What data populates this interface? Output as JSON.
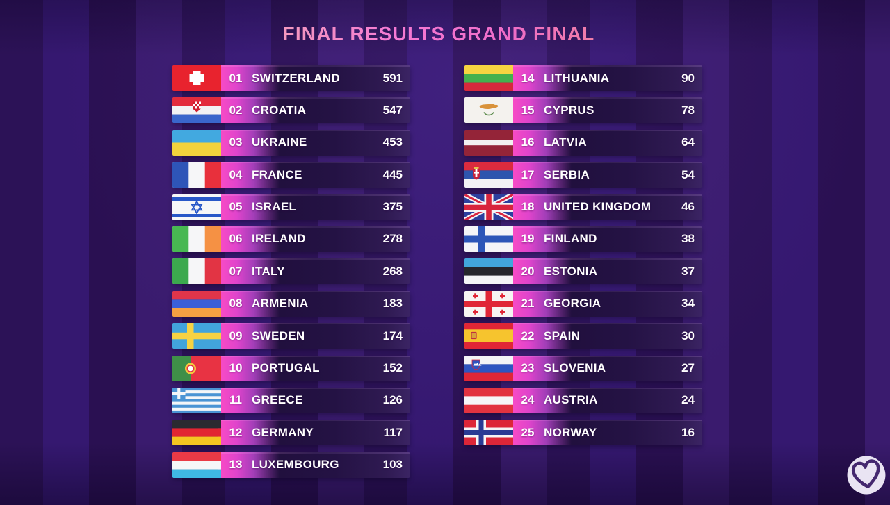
{
  "title": {
    "text": "FINAL RESULTS GRAND FINAL"
  },
  "results": {
    "left": [
      {
        "rank": "01",
        "country": "SWITZERLAND",
        "points": "591",
        "flag": "ch"
      },
      {
        "rank": "02",
        "country": "CROATIA",
        "points": "547",
        "flag": "hr"
      },
      {
        "rank": "03",
        "country": "UKRAINE",
        "points": "453",
        "flag": "ua"
      },
      {
        "rank": "04",
        "country": "FRANCE",
        "points": "445",
        "flag": "fr"
      },
      {
        "rank": "05",
        "country": "ISRAEL",
        "points": "375",
        "flag": "il"
      },
      {
        "rank": "06",
        "country": "IRELAND",
        "points": "278",
        "flag": "ie"
      },
      {
        "rank": "07",
        "country": "ITALY",
        "points": "268",
        "flag": "it"
      },
      {
        "rank": "08",
        "country": "ARMENIA",
        "points": "183",
        "flag": "am"
      },
      {
        "rank": "09",
        "country": "SWEDEN",
        "points": "174",
        "flag": "se"
      },
      {
        "rank": "10",
        "country": "PORTUGAL",
        "points": "152",
        "flag": "pt"
      },
      {
        "rank": "11",
        "country": "GREECE",
        "points": "126",
        "flag": "gr"
      },
      {
        "rank": "12",
        "country": "GERMANY",
        "points": "117",
        "flag": "de"
      },
      {
        "rank": "13",
        "country": "LUXEMBOURG",
        "points": "103",
        "flag": "lu"
      }
    ],
    "right": [
      {
        "rank": "14",
        "country": "LITHUANIA",
        "points": "90",
        "flag": "lt"
      },
      {
        "rank": "15",
        "country": "CYPRUS",
        "points": "78",
        "flag": "cy"
      },
      {
        "rank": "16",
        "country": "LATVIA",
        "points": "64",
        "flag": "lv"
      },
      {
        "rank": "17",
        "country": "SERBIA",
        "points": "54",
        "flag": "rs"
      },
      {
        "rank": "18",
        "country": "UNITED KINGDOM",
        "points": "46",
        "flag": "gb"
      },
      {
        "rank": "19",
        "country": "FINLAND",
        "points": "38",
        "flag": "fi"
      },
      {
        "rank": "20",
        "country": "ESTONIA",
        "points": "37",
        "flag": "ee"
      },
      {
        "rank": "21",
        "country": "GEORGIA",
        "points": "34",
        "flag": "ge"
      },
      {
        "rank": "22",
        "country": "SPAIN",
        "points": "30",
        "flag": "es"
      },
      {
        "rank": "23",
        "country": "SLOVENIA",
        "points": "27",
        "flag": "si"
      },
      {
        "rank": "24",
        "country": "AUSTRIA",
        "points": "24",
        "flag": "at"
      },
      {
        "rank": "25",
        "country": "NORWAY",
        "points": "16",
        "flag": "no"
      }
    ]
  },
  "logo": {
    "icon": "eurovision-heart-icon"
  },
  "colors": {
    "background": "#2e1460",
    "row_dark": "#1f0e3a",
    "accent_pink": "#f443c0",
    "text": "#ffffff",
    "title_gradient": [
      "#e7b95c",
      "#f2a2b6",
      "#f57ad4",
      "#ef6cc8",
      "#f29457"
    ],
    "logo_circle": "#e9e4f3",
    "logo_heart": "#44286f"
  },
  "chart_data": {
    "type": "table",
    "title": "FINAL RESULTS GRAND FINAL",
    "columns": [
      "rank",
      "country",
      "points"
    ],
    "rows": [
      [
        1,
        "SWITZERLAND",
        591
      ],
      [
        2,
        "CROATIA",
        547
      ],
      [
        3,
        "UKRAINE",
        453
      ],
      [
        4,
        "FRANCE",
        445
      ],
      [
        5,
        "ISRAEL",
        375
      ],
      [
        6,
        "IRELAND",
        278
      ],
      [
        7,
        "ITALY",
        268
      ],
      [
        8,
        "ARMENIA",
        183
      ],
      [
        9,
        "SWEDEN",
        174
      ],
      [
        10,
        "PORTUGAL",
        152
      ],
      [
        11,
        "GREECE",
        126
      ],
      [
        12,
        "GERMANY",
        117
      ],
      [
        13,
        "LUXEMBOURG",
        103
      ],
      [
        14,
        "LITHUANIA",
        90
      ],
      [
        15,
        "CYPRUS",
        78
      ],
      [
        16,
        "LATVIA",
        64
      ],
      [
        17,
        "SERBIA",
        54
      ],
      [
        18,
        "UNITED KINGDOM",
        46
      ],
      [
        19,
        "FINLAND",
        38
      ],
      [
        20,
        "ESTONIA",
        37
      ],
      [
        21,
        "GEORGIA",
        34
      ],
      [
        22,
        "SPAIN",
        30
      ],
      [
        23,
        "SLOVENIA",
        27
      ],
      [
        24,
        "AUSTRIA",
        24
      ],
      [
        25,
        "NORWAY",
        16
      ]
    ]
  }
}
